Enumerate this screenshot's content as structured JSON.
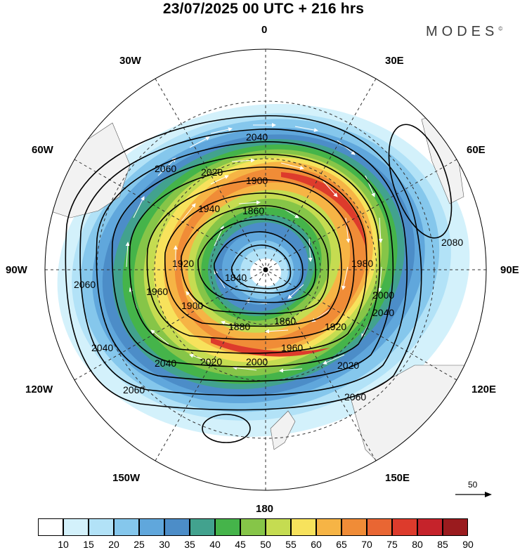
{
  "title": "23/07/2025  00 UTC  + 216 hrs",
  "brand": "MODES",
  "brand_mark": "©",
  "map": {
    "projection": "south-polar stereographic",
    "lon_labels": {
      "0": "0",
      "30E": "30E",
      "60E": "60E",
      "90E": "90E",
      "120E": "120E",
      "150E": "150E",
      "180": "180",
      "150W": "150W",
      "120W": "120W",
      "90W": "90W",
      "60W": "60W",
      "30W": "30W"
    },
    "contour_labels": [
      "2080",
      "2060",
      "2040",
      "2020",
      "2000",
      "1980",
      "1960",
      "1940",
      "1920",
      "1900",
      "1880",
      "1860",
      "1840"
    ],
    "reference_vector_label": "50",
    "colors": {
      "land": "#f2f2f2",
      "contour": "#000000",
      "wind_arrow": "#ffffff"
    }
  },
  "legend": {
    "tick_labels": [
      "10",
      "15",
      "20",
      "25",
      "30",
      "35",
      "40",
      "45",
      "50",
      "55",
      "60",
      "65",
      "70",
      "75",
      "80",
      "85",
      "90"
    ],
    "colors": [
      "#ffffff",
      "#d3f1fb",
      "#b2e2f7",
      "#85c7ec",
      "#60a7dc",
      "#4c8dc8",
      "#42a28e",
      "#45b44a",
      "#86c548",
      "#c5dc51",
      "#f7e25c",
      "#f6b445",
      "#f08c37",
      "#e96633",
      "#dd3b2c",
      "#c5232b",
      "#9a1b1e"
    ]
  }
}
